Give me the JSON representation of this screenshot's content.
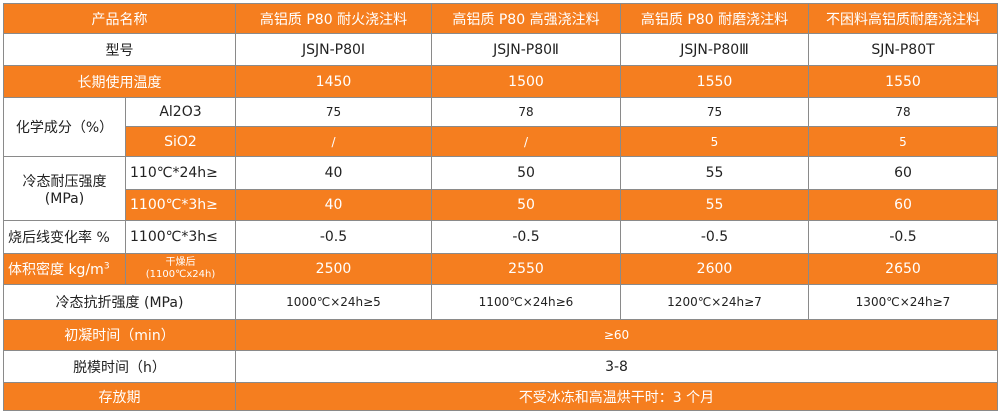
{
  "header": {
    "col0": "产品名称",
    "products": [
      "高铝质 P80 耐火浇注料",
      "高铝质 P80 高强浇注料",
      "高铝质 P80 耐磨浇注料",
      "不困料高铝质耐磨浇注料"
    ]
  },
  "model": {
    "label": "型号",
    "values": [
      "JSJN-P80Ⅰ",
      "JSJN-P80Ⅱ",
      "JSJN-P80Ⅲ",
      "SJN-P80T"
    ]
  },
  "long_term_temp": {
    "label": "长期使用温度",
    "values": [
      "1450",
      "1500",
      "1550",
      "1550"
    ]
  },
  "chemical": {
    "label": "化学成分（%）",
    "al2o3": {
      "label": "Al2O3",
      "values": [
        "75",
        "78",
        "75",
        "78"
      ]
    },
    "sio2": {
      "label": "SiO2",
      "values": [
        "/",
        "/",
        "5",
        "5"
      ]
    }
  },
  "cold_crushing": {
    "label_line1": "冷态耐压强度",
    "label_line2": "(MPa)",
    "row1": {
      "cond": "110℃*24h≥",
      "values": [
        "40",
        "50",
        "55",
        "60"
      ]
    },
    "row2": {
      "cond": "1100℃*3h≥",
      "values": [
        "40",
        "50",
        "55",
        "60"
      ]
    }
  },
  "linear_change": {
    "label": "烧后线变化率 %",
    "cond": "1100℃*3h≤",
    "values": [
      "-0.5",
      "-0.5",
      "-0.5",
      "-0.5"
    ]
  },
  "bulk_density": {
    "label": "体积密度 kg/m",
    "label_sup": "3",
    "cond_line1": "干燥后",
    "cond_line2": "(1100℃x24h)",
    "values": [
      "2500",
      "2550",
      "2600",
      "2650"
    ]
  },
  "cold_flexural": {
    "label": "冷态抗折强度 (MPa)",
    "values": [
      "1000℃×24h≥5",
      "1100℃×24h≥6",
      "1200℃×24h≥7",
      "1300℃×24h≥7"
    ]
  },
  "initial_set": {
    "label": "初凝时间（min）",
    "value": "≥60"
  },
  "demold": {
    "label": "脱模时间（h）",
    "value": "3-8"
  },
  "storage": {
    "label": "存放期",
    "value": "不受冰冻和高温烘干时：3 个月"
  }
}
